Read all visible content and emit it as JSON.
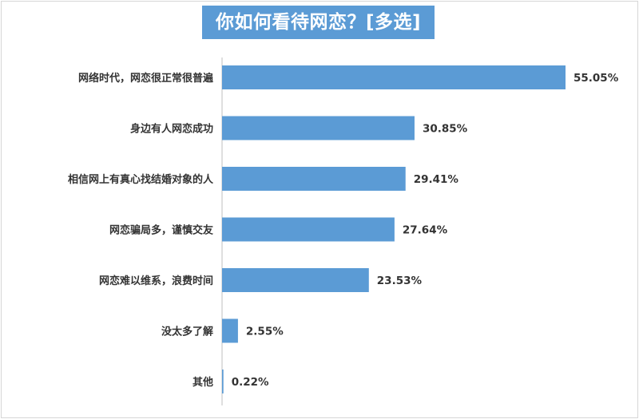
{
  "chart_data": {
    "type": "bar",
    "orientation": "horizontal",
    "title": "你如何看待网恋？[多选]",
    "categories": [
      "网络时代，网恋很正常很普遍",
      "身边有人网恋成功",
      "相信网上有真心找结婚对象的人",
      "网恋骗局多，谨慎交友",
      "网恋难以维系，浪费时间",
      "没太多了解",
      "其他"
    ],
    "values": [
      55.05,
      30.85,
      29.41,
      27.64,
      23.53,
      2.55,
      0.22
    ],
    "value_labels": [
      "55.05%",
      "30.85%",
      "29.41%",
      "27.64%",
      "23.53%",
      "2.55%",
      "0.22%"
    ],
    "unit": "%",
    "xlim": [
      0,
      55.05
    ],
    "grid": false,
    "legend": "none",
    "bar_color": "#5b9bd5"
  }
}
